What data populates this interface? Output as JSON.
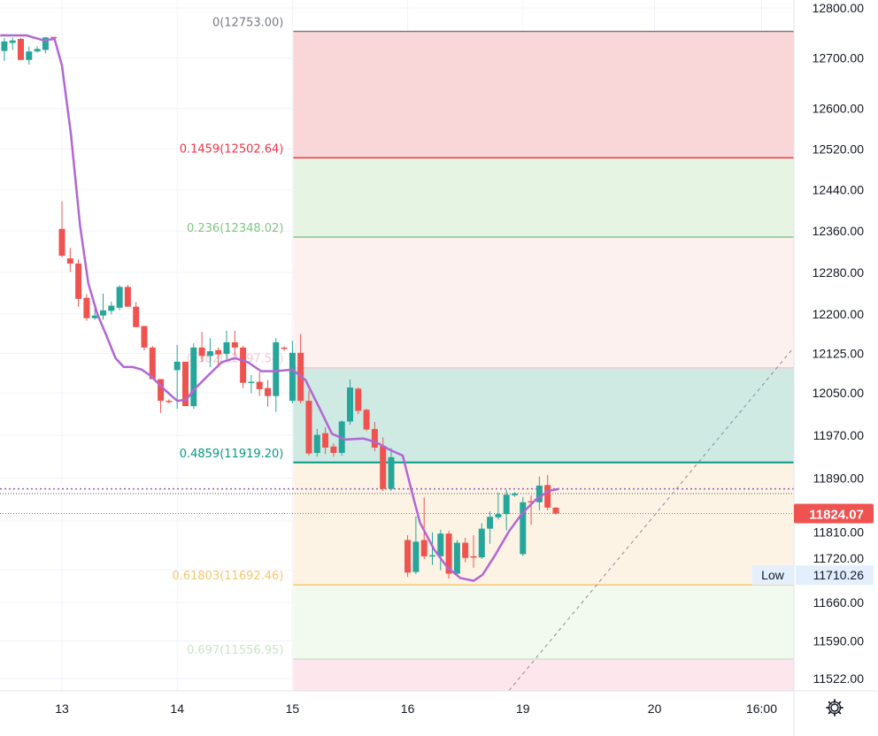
{
  "chart_data": {
    "type": "candlestick",
    "title": "",
    "price_scale": "log",
    "ylim": [
      11522,
      12800
    ],
    "colors": {
      "up": "#26a69a",
      "down": "#ef5350",
      "ma": "#b266d4",
      "grid": "#f0f3fa",
      "last_price": "#ef5350",
      "low_label_bg": "#e3effd"
    },
    "y_ticks": [
      12800,
      12700,
      12600,
      12520,
      12440,
      12360,
      12280,
      12200,
      12125,
      12050,
      11970,
      11890,
      11810,
      11720,
      11660,
      11590,
      11522
    ],
    "y_tick_labels": [
      "12800.00",
      "12700.00",
      "12600.00",
      "12520.00",
      "12440.00",
      "12360.00",
      "12280.00",
      "12200.00",
      "12125.00",
      "12050.00",
      "11970.00",
      "11890.00",
      "11810.00",
      "11720.00",
      "11660.00",
      "11590.00",
      "11522.00"
    ],
    "x_ticks": [
      {
        "label": "13",
        "bar": 0
      },
      {
        "label": "14",
        "bar": 14
      },
      {
        "label": "15",
        "bar": 28
      },
      {
        "label": "16",
        "bar": 42
      },
      {
        "label": "19",
        "bar": 56
      },
      {
        "label": "20",
        "bar": 72
      },
      {
        "label": "16:00",
        "bar": 85
      }
    ],
    "candles": [
      [
        -7,
        12714,
        12740,
        12694,
        12733
      ],
      [
        -6,
        12730,
        12741,
        12716,
        12735
      ],
      [
        -5,
        12738,
        12740,
        12696,
        12696
      ],
      [
        -4,
        12696,
        12723,
        12687,
        12713
      ],
      [
        -3,
        12713,
        12723,
        12711,
        12718
      ],
      [
        -2,
        12716,
        12742,
        12709,
        12741
      ],
      [
        -1,
        12742,
        12742,
        12739,
        12740
      ],
      [
        0,
        12364,
        12418,
        12309,
        12312
      ],
      [
        1,
        12307,
        12327,
        12281,
        12297
      ],
      [
        2,
        12297,
        12305,
        12214,
        12229
      ],
      [
        3,
        12231,
        12238,
        12187,
        12192
      ],
      [
        4,
        12192,
        12212,
        12189,
        12197
      ],
      [
        5,
        12197,
        12239,
        12189,
        12207
      ],
      [
        6,
        12206,
        12224,
        12199,
        12216
      ],
      [
        7,
        12212,
        12255,
        12207,
        12252
      ],
      [
        8,
        12252,
        12256,
        12214,
        12214
      ],
      [
        9,
        12214,
        12223,
        12175,
        12175
      ],
      [
        10,
        12177,
        12177,
        12131,
        12136
      ],
      [
        11,
        12136,
        12139,
        12076,
        12076
      ],
      [
        12,
        12076,
        12076,
        12012,
        12035
      ],
      [
        13,
        12035,
        12038,
        12030,
        12033
      ],
      [
        14,
        12093,
        12141,
        12020,
        12109
      ],
      [
        15,
        12109,
        12109,
        12025,
        12025
      ],
      [
        16,
        12025,
        12144,
        12020,
        12136
      ],
      [
        17,
        12136,
        12166,
        12109,
        12120
      ],
      [
        18,
        12120,
        12154,
        12099,
        12129
      ],
      [
        19,
        12131,
        12136,
        12099,
        12123
      ],
      [
        20,
        12124,
        12168,
        12114,
        12146
      ],
      [
        21,
        12146,
        12168,
        12119,
        12136
      ],
      [
        22,
        12136,
        12139,
        12059,
        12069
      ],
      [
        23,
        12069,
        12084,
        12049,
        12071
      ],
      [
        24,
        12071,
        12089,
        12044,
        12057
      ],
      [
        25,
        12059,
        12074,
        12024,
        12044
      ],
      [
        26,
        12044,
        12154,
        12014,
        12146
      ],
      [
        27,
        12136,
        12138,
        12130,
        12134
      ],
      [
        28,
        12035,
        12149,
        12030,
        12126
      ],
      [
        29,
        12126,
        12162,
        12030,
        12035
      ],
      [
        30,
        12035,
        12054,
        11932,
        11936
      ],
      [
        31,
        11937,
        11982,
        11930,
        11971
      ],
      [
        32,
        11974,
        11985,
        11935,
        11947
      ],
      [
        33,
        11949,
        11955,
        11930,
        11937
      ],
      [
        34,
        11937,
        11998,
        11932,
        11996
      ],
      [
        35,
        11996,
        12075,
        11990,
        12060
      ],
      [
        36,
        12058,
        12060,
        12010,
        12016
      ],
      [
        37,
        12018,
        12020,
        11978,
        11981
      ],
      [
        38,
        11982,
        11995,
        11940,
        11947
      ],
      [
        39,
        11950,
        11966,
        11866,
        11870
      ],
      [
        40,
        11870,
        11946,
        11866,
        11929
      ],
      [
        42,
        11775,
        11784,
        11707,
        11715
      ],
      [
        43,
        11716,
        11819,
        11712,
        11772
      ],
      [
        44,
        11775,
        11854,
        11740,
        11745
      ],
      [
        45,
        11745,
        11789,
        11729,
        11747
      ],
      [
        46,
        11745,
        11794,
        11719,
        11787
      ],
      [
        47,
        11787,
        11792,
        11704,
        11713
      ],
      [
        48,
        11713,
        11775,
        11708,
        11770
      ],
      [
        49,
        11770,
        11779,
        11734,
        11742
      ],
      [
        50,
        11745,
        11784,
        11724,
        11743
      ],
      [
        51,
        11743,
        11806,
        11740,
        11796
      ],
      [
        52,
        11796,
        11828,
        11768,
        11818
      ],
      [
        53,
        11817,
        11863,
        11813,
        11823
      ],
      [
        54,
        11823,
        11868,
        11793,
        11859
      ],
      [
        55,
        11858,
        11864,
        11855,
        11861
      ],
      [
        56,
        11749,
        11855,
        11745,
        11845
      ],
      [
        57,
        11847,
        11858,
        11803,
        11845
      ],
      [
        58,
        11845,
        11893,
        11830,
        11876
      ],
      [
        59,
        11877,
        11896,
        11830,
        11835
      ],
      [
        60,
        11835,
        11836,
        11822,
        11824.07
      ]
    ],
    "candle_fields": [
      "bar",
      "open",
      "high",
      "low",
      "close"
    ],
    "moving_average": [
      [
        -7.5,
        12745
      ],
      [
        -4.3,
        12745
      ],
      [
        -2.2,
        12735
      ],
      [
        -0.9,
        12738
      ],
      [
        0,
        12685
      ],
      [
        1.1,
        12548
      ],
      [
        2.2,
        12370
      ],
      [
        3.2,
        12259
      ],
      [
        4.3,
        12200
      ],
      [
        5.4,
        12159
      ],
      [
        6.5,
        12116
      ],
      [
        7.5,
        12099
      ],
      [
        8.6,
        12099
      ],
      [
        9.7,
        12094
      ],
      [
        10.8,
        12082
      ],
      [
        12.4,
        12057
      ],
      [
        14,
        12035
      ],
      [
        15.1,
        12037
      ],
      [
        16.1,
        12057
      ],
      [
        17.7,
        12082
      ],
      [
        19.4,
        12108
      ],
      [
        21,
        12116
      ],
      [
        22.6,
        12108
      ],
      [
        24.2,
        12091
      ],
      [
        25.8,
        12091
      ],
      [
        28,
        12094
      ],
      [
        29.6,
        12074
      ],
      [
        31.2,
        12024
      ],
      [
        32.8,
        11973
      ],
      [
        34.4,
        11962
      ],
      [
        36.6,
        11964
      ],
      [
        38.2,
        11957
      ],
      [
        39.8,
        11943
      ],
      [
        41.4,
        11932
      ],
      [
        42.5,
        11865
      ],
      [
        43.5,
        11807
      ],
      [
        45.2,
        11758
      ],
      [
        46.8,
        11725
      ],
      [
        48.4,
        11705
      ],
      [
        50,
        11700
      ],
      [
        51.1,
        11711
      ],
      [
        52.7,
        11749
      ],
      [
        54.3,
        11791
      ],
      [
        55.9,
        11824
      ],
      [
        57.5,
        11849
      ],
      [
        59.1,
        11866
      ],
      [
        60.4,
        11870
      ]
    ],
    "fibonacci": {
      "start_bar": 28,
      "levels": [
        {
          "ratio": "0",
          "price": 12753.0,
          "label": "0(12753.00)",
          "color": "#787b86",
          "fill": "#f9d6d8"
        },
        {
          "ratio": "0.1459",
          "price": 12502.64,
          "label": "0.1459(12502.64)",
          "color": "#f23645",
          "fill": "#e6f4e4"
        },
        {
          "ratio": "0.236",
          "price": 12348.02,
          "label": "0.236(12348.02)",
          "color": "#81c784",
          "fill": "#fdf1f0"
        },
        {
          "ratio": "0.382",
          "price": 12097.54,
          "label": "0.382(12097.54)",
          "color": "#f8c8d0",
          "fill": "#cfe9e3"
        },
        {
          "ratio": "0.4859",
          "price": 11919.2,
          "label": "0.4859(11919.20)",
          "color": "#089981",
          "fill": "#fdf3e4"
        },
        {
          "ratio": "0.61803",
          "price": 11692.46,
          "label": "0.61803(11692.46)",
          "color": "#f7c76e",
          "fill": "#f2f9ef"
        },
        {
          "ratio": "0.697",
          "price": 11556.95,
          "label": "0.697(11556.95)",
          "color": "#c8e6c9",
          "fill": "#fde6ec"
        }
      ]
    },
    "trendline": [
      [
        54.3,
        11500
      ],
      [
        88.9,
        12136
      ]
    ],
    "dotted_lines": [
      {
        "price": 11870,
        "color": "#9c5bb8"
      },
      {
        "price": 11861,
        "color": "#555555"
      },
      {
        "price": 11824.07,
        "color": "#ef5350"
      }
    ],
    "last_price": {
      "value": 11824.07,
      "label": "11824.07"
    },
    "low_marker": {
      "title": "Low",
      "value": 11710.26,
      "label": "11710.26"
    }
  },
  "settings_icon": "gear-icon"
}
